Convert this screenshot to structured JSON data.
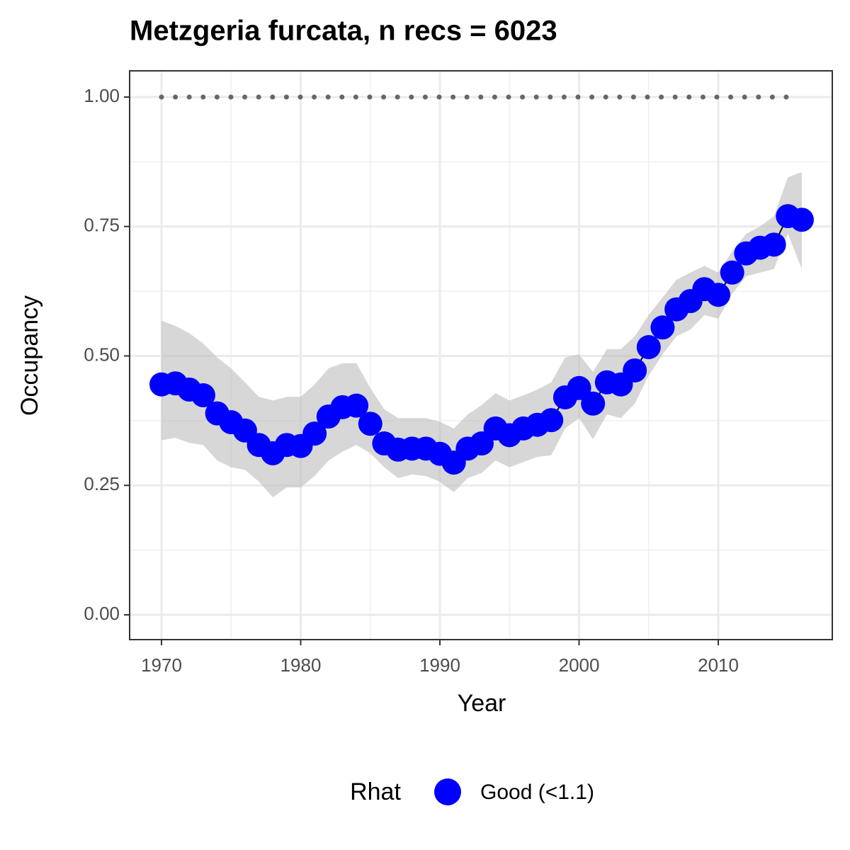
{
  "chart_data": {
    "type": "line",
    "title": "Metzgeria furcata, n recs = 6023",
    "x_label": "Year",
    "y_label": "Occupancy",
    "x": [
      1970,
      1971,
      1972,
      1973,
      1974,
      1975,
      1976,
      1977,
      1978,
      1979,
      1980,
      1981,
      1982,
      1983,
      1984,
      1985,
      1986,
      1987,
      1988,
      1989,
      1990,
      1991,
      1992,
      1993,
      1994,
      1995,
      1996,
      1997,
      1998,
      1999,
      2000,
      2001,
      2002,
      2003,
      2004,
      2005,
      2006,
      2007,
      2008,
      2009,
      2010,
      2011,
      2012,
      2013,
      2014,
      2015,
      2016
    ],
    "series": [
      {
        "name": "Good (<1.1)",
        "color": "#0000ff",
        "values": [
          0.445,
          0.447,
          0.435,
          0.424,
          0.389,
          0.372,
          0.356,
          0.328,
          0.312,
          0.328,
          0.326,
          0.35,
          0.383,
          0.401,
          0.404,
          0.369,
          0.331,
          0.319,
          0.321,
          0.321,
          0.311,
          0.294,
          0.321,
          0.331,
          0.36,
          0.347,
          0.36,
          0.367,
          0.376,
          0.42,
          0.438,
          0.408,
          0.449,
          0.445,
          0.472,
          0.517,
          0.555,
          0.59,
          0.606,
          0.629,
          0.618,
          0.661,
          0.698,
          0.709,
          0.715,
          0.77,
          0.763
        ],
        "upper": [
          0.568,
          0.558,
          0.544,
          0.524,
          0.497,
          0.476,
          0.449,
          0.421,
          0.414,
          0.421,
          0.421,
          0.445,
          0.476,
          0.486,
          0.486,
          0.438,
          0.397,
          0.38,
          0.38,
          0.38,
          0.373,
          0.36,
          0.387,
          0.405,
          0.428,
          0.414,
          0.424,
          0.435,
          0.449,
          0.497,
          0.503,
          0.469,
          0.513,
          0.513,
          0.538,
          0.579,
          0.613,
          0.647,
          0.661,
          0.674,
          0.661,
          0.702,
          0.736,
          0.75,
          0.77,
          0.845,
          0.855
        ],
        "lower": [
          0.337,
          0.342,
          0.332,
          0.328,
          0.298,
          0.285,
          0.28,
          0.257,
          0.227,
          0.246,
          0.246,
          0.268,
          0.298,
          0.315,
          0.328,
          0.312,
          0.285,
          0.264,
          0.271,
          0.268,
          0.257,
          0.237,
          0.264,
          0.274,
          0.298,
          0.285,
          0.295,
          0.305,
          0.308,
          0.36,
          0.38,
          0.339,
          0.387,
          0.38,
          0.408,
          0.462,
          0.503,
          0.538,
          0.551,
          0.579,
          0.572,
          0.62,
          0.654,
          0.661,
          0.668,
          0.736,
          0.668
        ]
      }
    ],
    "reference_line": {
      "y": 1,
      "x": [
        1970,
        2015
      ],
      "color": "#666666"
    },
    "ribbon_color": "#bdbdbd",
    "legend_title": "Rhat",
    "legend": "bottom",
    "xlim": [
      1967.71,
      2018.19
    ],
    "ylim": [
      -0.0479,
      1.0506
    ],
    "xticks": [
      1970,
      1980,
      1990,
      2000,
      2010
    ],
    "yticks": [
      {
        "value": 0,
        "label": "0.00"
      },
      {
        "value": 0.25,
        "label": "0.25"
      },
      {
        "value": 0.5,
        "label": "0.50"
      },
      {
        "value": 0.75,
        "label": "0.75"
      },
      {
        "value": 1,
        "label": "1.00"
      }
    ],
    "grid": true,
    "minor_grid": true
  }
}
